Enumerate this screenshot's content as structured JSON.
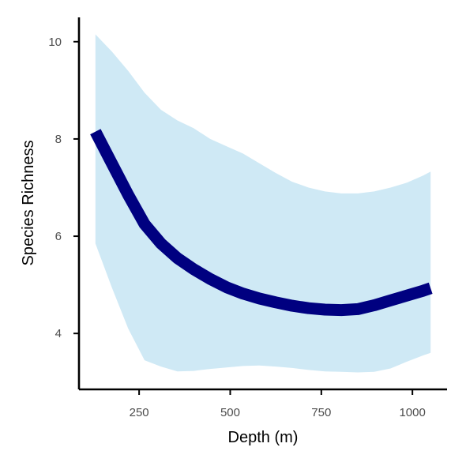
{
  "chart_data": {
    "type": "line",
    "title": "",
    "xlabel": "Depth (m)",
    "ylabel": "Species Richness",
    "xlim": [
      85,
      1095
    ],
    "ylim": [
      2.85,
      10.5
    ],
    "x_ticks": [
      250,
      500,
      750,
      1000
    ],
    "y_ticks": [
      4,
      6,
      8,
      10
    ],
    "grid": false,
    "legend": "none",
    "series": [
      {
        "type": "line",
        "color": "#000080",
        "x": [
          130,
          175,
          220,
          265,
          310,
          355,
          400,
          445,
          490,
          535,
          580,
          625,
          670,
          715,
          760,
          805,
          850,
          895,
          940,
          985,
          1030,
          1050
        ],
        "y": [
          8.15,
          7.5,
          6.85,
          6.25,
          5.85,
          5.55,
          5.32,
          5.12,
          4.95,
          4.82,
          4.72,
          4.64,
          4.57,
          4.52,
          4.49,
          4.48,
          4.5,
          4.58,
          4.68,
          4.78,
          4.88,
          4.93
        ]
      }
    ],
    "ribbon": {
      "color": "#cfe9f5",
      "x": [
        130,
        175,
        220,
        265,
        310,
        355,
        400,
        445,
        490,
        535,
        580,
        625,
        670,
        715,
        760,
        805,
        850,
        895,
        940,
        985,
        1030,
        1050
      ],
      "lower": [
        5.85,
        4.95,
        4.1,
        3.45,
        3.32,
        3.22,
        3.23,
        3.27,
        3.3,
        3.33,
        3.34,
        3.32,
        3.29,
        3.25,
        3.22,
        3.21,
        3.2,
        3.21,
        3.28,
        3.42,
        3.55,
        3.6
      ],
      "upper": [
        10.15,
        9.8,
        9.4,
        8.95,
        8.6,
        8.38,
        8.22,
        8.0,
        7.85,
        7.7,
        7.5,
        7.3,
        7.12,
        7.0,
        6.92,
        6.88,
        6.88,
        6.92,
        7.0,
        7.1,
        7.25,
        7.33
      ]
    }
  }
}
